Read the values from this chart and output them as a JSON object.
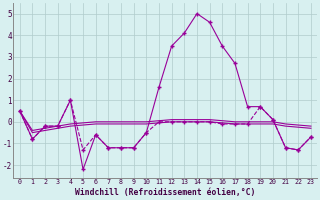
{
  "xlabel": "Windchill (Refroidissement éolien,°C)",
  "x": [
    0,
    1,
    2,
    3,
    4,
    5,
    6,
    7,
    8,
    9,
    10,
    11,
    12,
    13,
    14,
    15,
    16,
    17,
    18,
    19,
    20,
    21,
    22,
    23
  ],
  "line_main": [
    0.5,
    -0.8,
    -0.2,
    -0.2,
    1.0,
    -2.2,
    -0.6,
    -1.2,
    -1.2,
    -1.2,
    -0.5,
    1.6,
    3.5,
    4.1,
    5.0,
    4.6,
    3.5,
    2.7,
    0.7,
    0.7,
    0.1,
    -1.2,
    -1.3,
    -0.7
  ],
  "line_dashed": [
    0.5,
    -0.8,
    -0.2,
    -0.2,
    1.0,
    -1.3,
    -0.6,
    -1.2,
    -1.2,
    -1.2,
    -0.5,
    0.0,
    0.0,
    0.0,
    0.0,
    0.0,
    -0.1,
    -0.1,
    -0.1,
    0.7,
    0.1,
    -1.2,
    -1.3,
    -0.7
  ],
  "line_trend1": [
    0.5,
    -0.4,
    -0.3,
    -0.2,
    -0.1,
    -0.05,
    0.0,
    0.0,
    0.0,
    0.0,
    0.0,
    0.05,
    0.1,
    0.1,
    0.1,
    0.1,
    0.05,
    0.0,
    0.0,
    0.0,
    0.0,
    -0.1,
    -0.15,
    -0.2
  ],
  "line_trend2": [
    0.5,
    -0.5,
    -0.4,
    -0.3,
    -0.2,
    -0.15,
    -0.1,
    -0.1,
    -0.1,
    -0.1,
    -0.1,
    -0.05,
    0.0,
    0.0,
    0.0,
    0.0,
    -0.05,
    -0.1,
    -0.1,
    -0.1,
    -0.1,
    -0.2,
    -0.25,
    -0.3
  ],
  "line_color": "#990099",
  "bg_color": "#d8f0f0",
  "grid_color": "#b0cccc",
  "ylim": [
    -2.6,
    5.5
  ],
  "yticks": [
    -2,
    -1,
    0,
    1,
    2,
    3,
    4,
    5
  ]
}
